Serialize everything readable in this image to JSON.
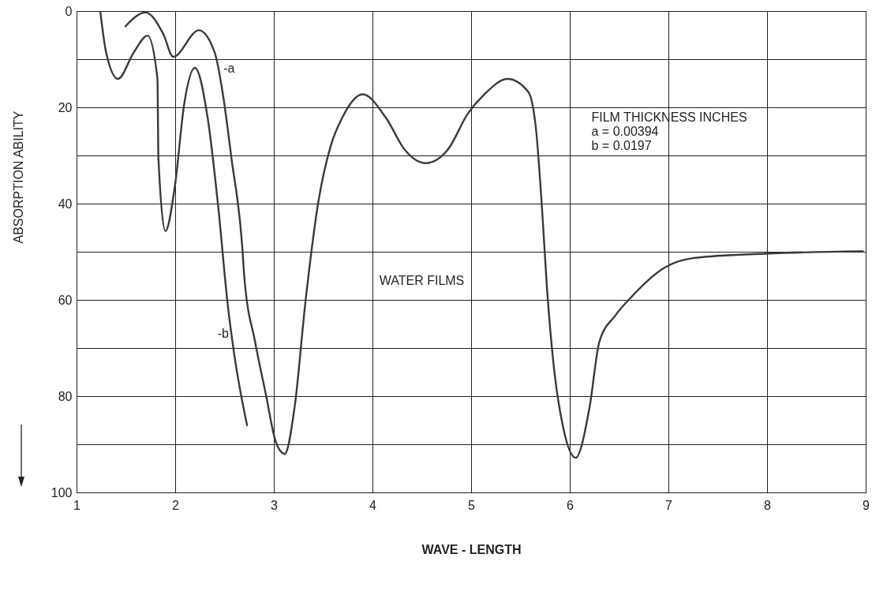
{
  "chart_data": {
    "type": "line",
    "xlabel": "WAVE - LENGTH",
    "ylabel": "ABSORPTION ABILITY",
    "xlim": [
      1,
      9
    ],
    "xticks": [
      1,
      2,
      3,
      4,
      5,
      6,
      7,
      8,
      9
    ],
    "ylim": [
      100,
      0
    ],
    "yticks": [
      0,
      {
        "value": 10,
        "label": null
      },
      20,
      {
        "value": 30,
        "label": null
      },
      40,
      {
        "value": 50,
        "label": null
      },
      60,
      {
        "value": 70,
        "label": null
      },
      80,
      {
        "value": 90,
        "label": null
      },
      100
    ],
    "grid": true,
    "line_style": "solid",
    "marker": "none",
    "series": [
      {
        "color": "#3a3a3a",
        "x": [
          1.49,
          1.7,
          1.88,
          1.98,
          2.24,
          2.4,
          2.48,
          2.57,
          2.68,
          2.7,
          2.81,
          2.92,
          3.02,
          3.11,
          3.21,
          3.32,
          3.45,
          3.58,
          3.69,
          3.9,
          4.14,
          4.33,
          4.54,
          4.76,
          4.97,
          5.13,
          5.37,
          5.58,
          5.66,
          5.72,
          5.77,
          5.84,
          5.93,
          6.06,
          6.2,
          6.3,
          6.46,
          6.62,
          6.97,
          7.26,
          7.98,
          8.98
        ],
        "values": [
          3.3,
          0.3,
          4.8,
          9.5,
          4,
          8.6,
          16.8,
          30.5,
          49,
          55,
          68.7,
          79.7,
          89.5,
          92,
          82.4,
          60.5,
          39.8,
          27.8,
          22.3,
          17.3,
          22.3,
          28.9,
          31.6,
          28.9,
          21.2,
          17.4,
          14.1,
          16.8,
          25,
          41.4,
          57.8,
          74.2,
          86.2,
          92.8,
          82.4,
          68.7,
          63.3,
          59.5,
          53.2,
          51.3,
          50.4,
          49.9
        ]
      },
      {
        "color": "#3a3a3a",
        "x": [
          1.24,
          1.3,
          1.42,
          1.58,
          1.72,
          1.82,
          1.83,
          1.9,
          2.0,
          2.09,
          2.2,
          2.33,
          2.44,
          2.53,
          2.6,
          2.73
        ],
        "values": [
          0,
          8.6,
          14.1,
          8.6,
          5.1,
          14,
          30.5,
          45.7,
          35.9,
          19.5,
          11.8,
          22.3,
          41.4,
          60.5,
          71.5,
          86.2
        ]
      }
    ],
    "annotations": [
      "-a",
      "-b",
      "WATER FILMS",
      "FILM THICKNESS INCHES\na = 0.00394\nb = 0.0197"
    ]
  }
}
